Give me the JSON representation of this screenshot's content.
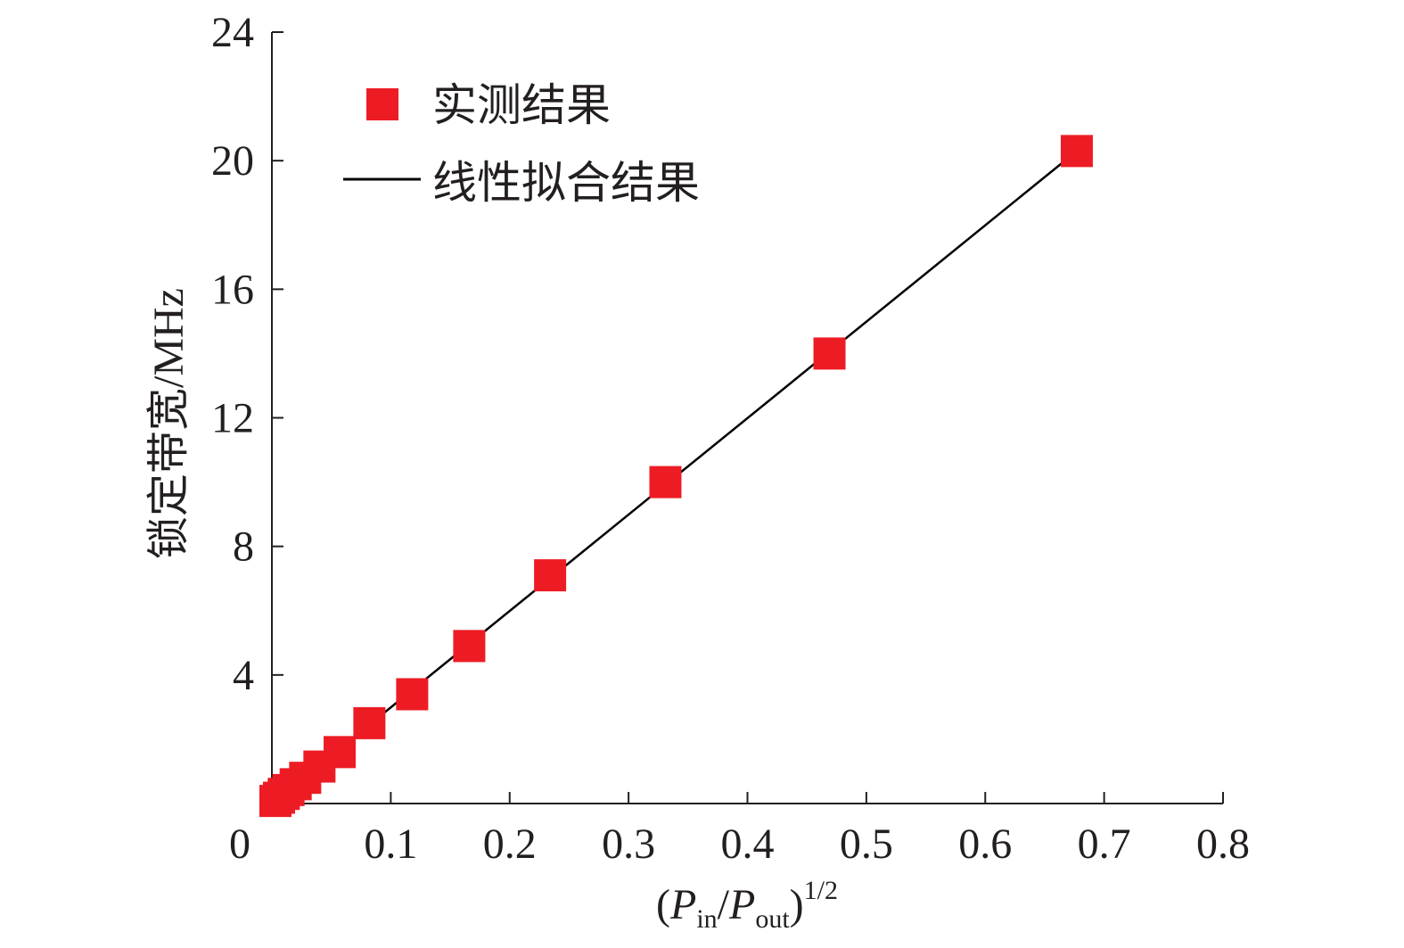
{
  "chart_data": {
    "type": "scatter",
    "xlabel": {
      "parts": [
        {
          "text": "(",
          "style": "normal"
        },
        {
          "text": "P",
          "style": "italic"
        },
        {
          "text": "in",
          "style": "sub"
        },
        {
          "text": "/",
          "style": "normal"
        },
        {
          "text": "P",
          "style": "italic"
        },
        {
          "text": "out",
          "style": "sub"
        },
        {
          "text": ")",
          "style": "normal"
        },
        {
          "text": "1/2",
          "style": "sup"
        }
      ]
    },
    "ylabel": "锁定带宽/MHz",
    "xlim": [
      0,
      0.8
    ],
    "ylim": [
      0,
      24
    ],
    "x_ticks": [
      0,
      0.1,
      0.2,
      0.3,
      0.4,
      0.5,
      0.6,
      0.7,
      0.8
    ],
    "x_tick_labels": [
      "0",
      "0.1",
      "0.2",
      "0.3",
      "0.4",
      "0.5",
      "0.6",
      "0.7",
      "0.8"
    ],
    "y_ticks": [
      4,
      8,
      12,
      16,
      20,
      24
    ],
    "y_tick_labels": [
      "4",
      "8",
      "12",
      "16",
      "20",
      "24"
    ],
    "grid": false,
    "legend_position": "top-left",
    "series": [
      {
        "name": "实测结果",
        "kind": "scatter",
        "marker": "square",
        "color": "#ed1c24",
        "points": [
          [
            0.003,
            0.08
          ],
          [
            0.006,
            0.18
          ],
          [
            0.01,
            0.3
          ],
          [
            0.014,
            0.42
          ],
          [
            0.02,
            0.6
          ],
          [
            0.028,
            0.8
          ],
          [
            0.04,
            1.15
          ],
          [
            0.057,
            1.6
          ],
          [
            0.082,
            2.5
          ],
          [
            0.118,
            3.4
          ],
          [
            0.166,
            4.9
          ],
          [
            0.234,
            7.1
          ],
          [
            0.331,
            10.0
          ],
          [
            0.469,
            14.0
          ],
          [
            0.677,
            20.3
          ]
        ]
      },
      {
        "name": "线性拟合结果",
        "kind": "line",
        "color": "#000000",
        "points": [
          [
            0.012,
            0.35
          ],
          [
            0.677,
            20.3
          ]
        ]
      }
    ]
  }
}
